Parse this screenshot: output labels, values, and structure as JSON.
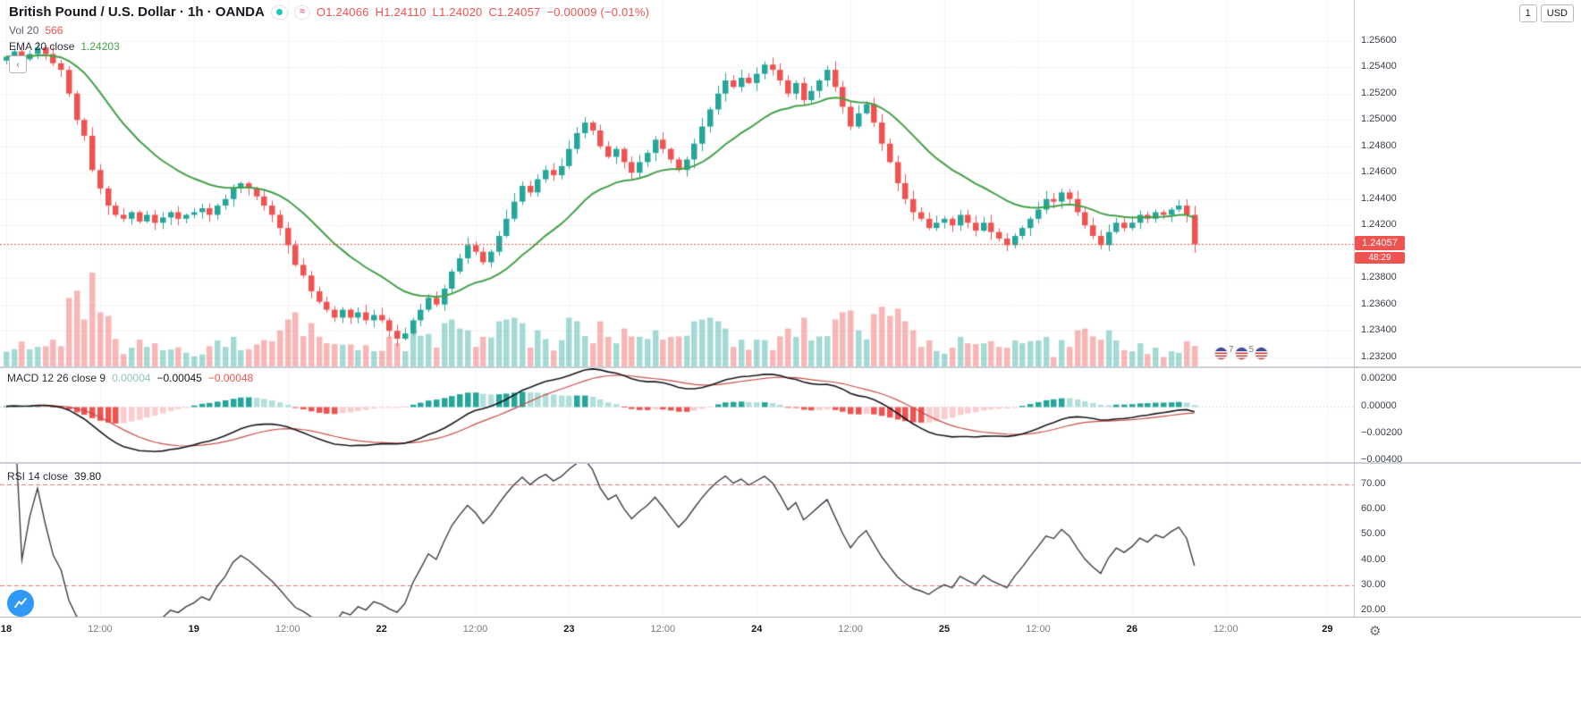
{
  "header": {
    "symbol_title": "British Pound / U.S. Dollar · 1h · OANDA",
    "ohlc": {
      "o": "O1.24066",
      "h": "H1.24110",
      "l": "L1.24020",
      "c": "C1.24057",
      "change": "−0.00009 (−0.01%)"
    },
    "vol": {
      "label": "Vol 20",
      "value": "566"
    },
    "ema": {
      "label": "EMA 20 close",
      "value": "1.24203"
    }
  },
  "top_right": {
    "buttons": [
      {
        "label": "1"
      },
      {
        "label": "USD"
      }
    ]
  },
  "macd_panel": {
    "label": "MACD 12 26 close 9",
    "values": [
      "0.00004",
      "−0.00045",
      "−0.00048"
    ],
    "axis_labels": [
      {
        "text": "0.00200",
        "value": 0.002
      },
      {
        "text": "0.00000",
        "value": 0.0
      },
      {
        "text": "−0.00200",
        "value": -0.002
      },
      {
        "text": "−0.00400",
        "value": -0.004
      }
    ]
  },
  "rsi_panel": {
    "label": "RSI 14 close",
    "value": "39.80",
    "axis_labels": [
      {
        "text": "70.00",
        "value": 70
      },
      {
        "text": "60.00",
        "value": 60
      },
      {
        "text": "50.00",
        "value": 50
      },
      {
        "text": "40.00",
        "value": 40
      },
      {
        "text": "30.00",
        "value": 30
      },
      {
        "text": "20.00",
        "value": 20
      }
    ]
  },
  "price_axis": {
    "current_price": "1.24057",
    "countdown": "48:29",
    "labels": [
      {
        "text": "1.25600",
        "price": 1.256
      },
      {
        "text": "1.25400",
        "price": 1.254
      },
      {
        "text": "1.25200",
        "price": 1.252
      },
      {
        "text": "1.25000",
        "price": 1.25
      },
      {
        "text": "1.24800",
        "price": 1.248
      },
      {
        "text": "1.24600",
        "price": 1.246
      },
      {
        "text": "1.24400",
        "price": 1.244
      },
      {
        "text": "1.24200",
        "price": 1.242
      },
      {
        "text": "1.23800",
        "price": 1.238
      },
      {
        "text": "1.23600",
        "price": 1.236
      },
      {
        "text": "1.23400",
        "price": 1.234
      },
      {
        "text": "1.23200",
        "price": 1.232
      }
    ]
  },
  "time_axis": {
    "ticks": [
      {
        "label": "18",
        "bar": 0,
        "major": true
      },
      {
        "label": "12:00",
        "bar": 12,
        "major": false
      },
      {
        "label": "19",
        "bar": 24,
        "major": true
      },
      {
        "label": "12:00",
        "bar": 36,
        "major": false
      },
      {
        "label": "22",
        "bar": 48,
        "major": true
      },
      {
        "label": "12:00",
        "bar": 60,
        "major": false
      },
      {
        "label": "23",
        "bar": 72,
        "major": true
      },
      {
        "label": "12:00",
        "bar": 84,
        "major": false
      },
      {
        "label": "24",
        "bar": 96,
        "major": true
      },
      {
        "label": "12:00",
        "bar": 108,
        "major": false
      },
      {
        "label": "25",
        "bar": 120,
        "major": true
      },
      {
        "label": "12:00",
        "bar": 132,
        "major": false
      },
      {
        "label": "26",
        "bar": 144,
        "major": true
      },
      {
        "label": "12:00",
        "bar": 156,
        "major": false
      },
      {
        "label": "29",
        "bar": 169,
        "major": true
      }
    ]
  },
  "events": {
    "count_a": "7",
    "count_b": "5"
  },
  "colors": {
    "up": "#26a69a",
    "down": "#ef5350",
    "vol_up": "rgba(38,166,154,0.42)",
    "vol_down": "rgba(239,83,80,0.42)",
    "ema": "#43a047",
    "macd_line": "#16181d",
    "signal_line": "#cc4b45",
    "hist_up_strong": "#26a69a",
    "hist_up_weak": "#b2dfdb",
    "hist_dn_strong": "#ef5350",
    "hist_dn_weak": "#fccbcd",
    "rsi_line": "#3a3d46",
    "band": "#e57373",
    "grid": "rgba(22,24,29,0.05)",
    "price_line": "#ef5350"
  },
  "chart_data": {
    "type": "candlestick",
    "symbol": "GBP/USD",
    "interval": "1h",
    "title": "British Pound / U.S. Dollar 1h OANDA",
    "open_first": 1.2545,
    "closes": [
      1.2548,
      1.2552,
      1.2546,
      1.255,
      1.2555,
      1.255,
      1.2543,
      1.2538,
      1.252,
      1.25,
      1.2488,
      1.2462,
      1.2448,
      1.2435,
      1.2428,
      1.2425,
      1.243,
      1.2423,
      1.2428,
      1.2422,
      1.2426,
      1.243,
      1.2425,
      1.2428,
      1.243,
      1.2433,
      1.2428,
      1.2435,
      1.244,
      1.2448,
      1.2452,
      1.2448,
      1.2442,
      1.2435,
      1.2428,
      1.2418,
      1.2405,
      1.239,
      1.2382,
      1.237,
      1.2362,
      1.2356,
      1.235,
      1.2356,
      1.235,
      1.2354,
      1.2348,
      1.2352,
      1.2348,
      1.234,
      1.2334,
      1.2338,
      1.2348,
      1.2356,
      1.2365,
      1.236,
      1.2372,
      1.2385,
      1.2395,
      1.2405,
      1.24,
      1.2392,
      1.24,
      1.2412,
      1.2425,
      1.2438,
      1.245,
      1.2445,
      1.2455,
      1.2462,
      1.2458,
      1.2465,
      1.2478,
      1.249,
      1.2498,
      1.2492,
      1.248,
      1.2472,
      1.2478,
      1.2468,
      1.246,
      1.2468,
      1.2475,
      1.2485,
      1.2478,
      1.247,
      1.2462,
      1.247,
      1.2482,
      1.2495,
      1.2508,
      1.252,
      1.253,
      1.2525,
      1.2532,
      1.2528,
      1.2535,
      1.2542,
      1.2538,
      1.253,
      1.252,
      1.2528,
      1.2515,
      1.2522,
      1.253,
      1.2538,
      1.2525,
      1.251,
      1.2495,
      1.2505,
      1.2512,
      1.2498,
      1.2482,
      1.2468,
      1.2452,
      1.244,
      1.243,
      1.2425,
      1.2418,
      1.2422,
      1.2425,
      1.242,
      1.2428,
      1.2422,
      1.2416,
      1.2422,
      1.2415,
      1.241,
      1.2405,
      1.2412,
      1.2418,
      1.2425,
      1.2432,
      1.244,
      1.2438,
      1.2445,
      1.244,
      1.243,
      1.242,
      1.2412,
      1.2405,
      1.2415,
      1.2422,
      1.2418,
      1.2422,
      1.2428,
      1.2425,
      1.243,
      1.2428,
      1.2432,
      1.2435,
      1.2428,
      1.24057
    ],
    "volumes": [
      410,
      480,
      690,
      470,
      540,
      560,
      740,
      560,
      1900,
      2100,
      1300,
      2600,
      1500,
      1400,
      760,
      340,
      520,
      740,
      540,
      640,
      450,
      470,
      530,
      380,
      280,
      330,
      560,
      720,
      540,
      820,
      450,
      480,
      610,
      730,
      700,
      1000,
      1300,
      1500,
      840,
      1200,
      820,
      640,
      620,
      600,
      610,
      450,
      590,
      420,
      430,
      820,
      640,
      420,
      1000,
      850,
      900,
      520,
      1200,
      1300,
      1050,
      1000,
      540,
      820,
      800,
      1250,
      1300,
      1350,
      1200,
      520,
      1000,
      760,
      440,
      730,
      1350,
      1250,
      840,
      640,
      1250,
      820,
      640,
      1050,
      830,
      820,
      760,
      1000,
      740,
      820,
      830,
      850,
      1250,
      1300,
      1350,
      1250,
      1050,
      540,
      740,
      460,
      740,
      730,
      450,
      830,
      1050,
      820,
      1350,
      720,
      830,
      840,
      1300,
      1500,
      1550,
      1000,
      750,
      1450,
      1650,
      1400,
      1600,
      1250,
      1000,
      540,
      720,
      430,
      350,
      520,
      820,
      640,
      620,
      640,
      700,
      540,
      520,
      720,
      640,
      700,
      720,
      820,
      260,
      730,
      540,
      1000,
      1050,
      830,
      740,
      1000,
      720,
      450,
      420,
      640,
      340,
      520,
      260,
      420,
      380,
      700,
      566
    ],
    "price_axis_range": [
      1.2313,
      1.2591
    ],
    "current_price": 1.24057,
    "ema_period": 20,
    "volume_ma_period": 20,
    "macd": {
      "fast": 12,
      "slow": 26,
      "signal": 9,
      "range": [
        -0.0041,
        0.0028
      ]
    },
    "rsi": {
      "period": 14,
      "range": [
        17.5,
        78.1
      ],
      "bands": [
        70,
        30
      ],
      "last": 39.8
    }
  }
}
